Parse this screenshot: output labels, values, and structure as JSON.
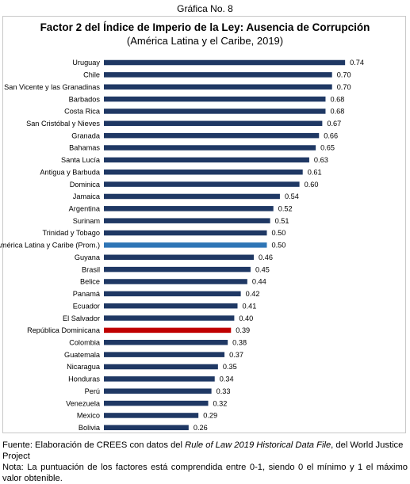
{
  "header": {
    "label": "Gráfica No. 8"
  },
  "chart_data": {
    "type": "bar",
    "orientation": "horizontal",
    "title": "Factor 2 del Índice de Imperio de la Ley: Ausencia de Corrupción",
    "subtitle": "(América Latina y el Caribe, 2019)",
    "xlim": [
      0,
      1
    ],
    "grid": false,
    "categories": [
      "Uruguay",
      "Chile",
      "San Vicente y las Granadinas",
      "Barbados",
      "Costa Rica",
      "San Cristóbal y Nieves",
      "Granada",
      "Bahamas",
      "Santa Lucía",
      "Antigua y Barbuda",
      "Dominica",
      "Jamaica",
      "Argentina",
      "Surinam",
      "Trinidad y Tobago",
      "América Latina y Caribe (Prom.)",
      "Guyana",
      "Brasil",
      "Belice",
      "Panamá",
      "Ecuador",
      "El Salvador",
      "República Dominicana",
      "Colombia",
      "Guatemala",
      "Nicaragua",
      "Honduras",
      "Perú",
      "Venezuela",
      "Mexico",
      "Bolivia"
    ],
    "values": [
      0.74,
      0.7,
      0.7,
      0.68,
      0.68,
      0.67,
      0.66,
      0.65,
      0.63,
      0.61,
      0.6,
      0.54,
      0.52,
      0.51,
      0.5,
      0.5,
      0.46,
      0.45,
      0.44,
      0.42,
      0.41,
      0.4,
      0.39,
      0.38,
      0.37,
      0.35,
      0.34,
      0.33,
      0.32,
      0.29,
      0.26
    ],
    "value_labels": [
      "0.74",
      "0.70",
      "0.70",
      "0.68",
      "0.68",
      "0.67",
      "0.66",
      "0.65",
      "0.63",
      "0.61",
      "0.60",
      "0.54",
      "0.52",
      "0.51",
      "0.50",
      "0.50",
      "0.46",
      "0.45",
      "0.44",
      "0.42",
      "0.41",
      "0.40",
      "0.39",
      "0.38",
      "0.37",
      "0.35",
      "0.34",
      "0.33",
      "0.32",
      "0.29",
      "0.26"
    ],
    "colors": {
      "default": "#1f3864",
      "average": "#2e75b6",
      "highlight": "#c00000"
    },
    "average_category": "América Latina y Caribe (Prom.)",
    "highlight_category": "República Dominicana"
  },
  "footer": {
    "source_prefix": "Fuente: Elaboración de CREES con datos del ",
    "source_title": "Rule of Law 2019 Historical Data File",
    "source_suffix": ", del World Justice Project",
    "note": "Nota: La puntuación de los factores está comprendida entre 0-1, siendo 0 el mínimo y 1 el máximo valor obtenible."
  }
}
